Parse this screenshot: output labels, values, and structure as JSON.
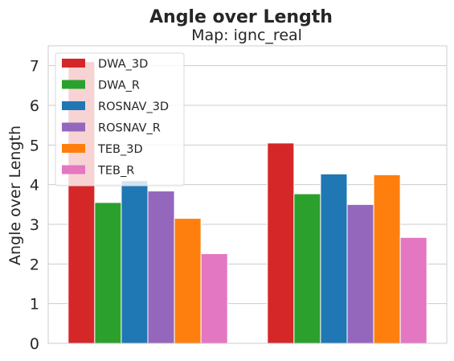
{
  "chart_data": {
    "type": "bar",
    "title": "Angle over Length",
    "subtitle": "Map: ignc_real",
    "xlabel": "",
    "ylabel": "Angle over Length",
    "ylim": [
      0,
      7.5
    ],
    "yticks": [
      "0",
      "1",
      "2",
      "3",
      "4",
      "5",
      "6",
      "7"
    ],
    "categories": [
      "",
      ""
    ],
    "grid": true,
    "legend_position": "top-left",
    "series": [
      {
        "name": "DWA_3D",
        "color": "#d62728",
        "values": [
          7.1,
          5.05
        ]
      },
      {
        "name": "DWA_R",
        "color": "#2ca02c",
        "values": [
          3.55,
          3.77
        ]
      },
      {
        "name": "ROSNAV_3D",
        "color": "#1f77b4",
        "values": [
          4.1,
          4.27
        ]
      },
      {
        "name": "ROSNAV_R",
        "color": "#9467bd",
        "values": [
          3.84,
          3.5
        ]
      },
      {
        "name": "TEB_3D",
        "color": "#ff7f0e",
        "values": [
          3.15,
          4.25
        ]
      },
      {
        "name": "TEB_R",
        "color": "#e377c2",
        "values": [
          2.26,
          2.67
        ]
      }
    ]
  }
}
